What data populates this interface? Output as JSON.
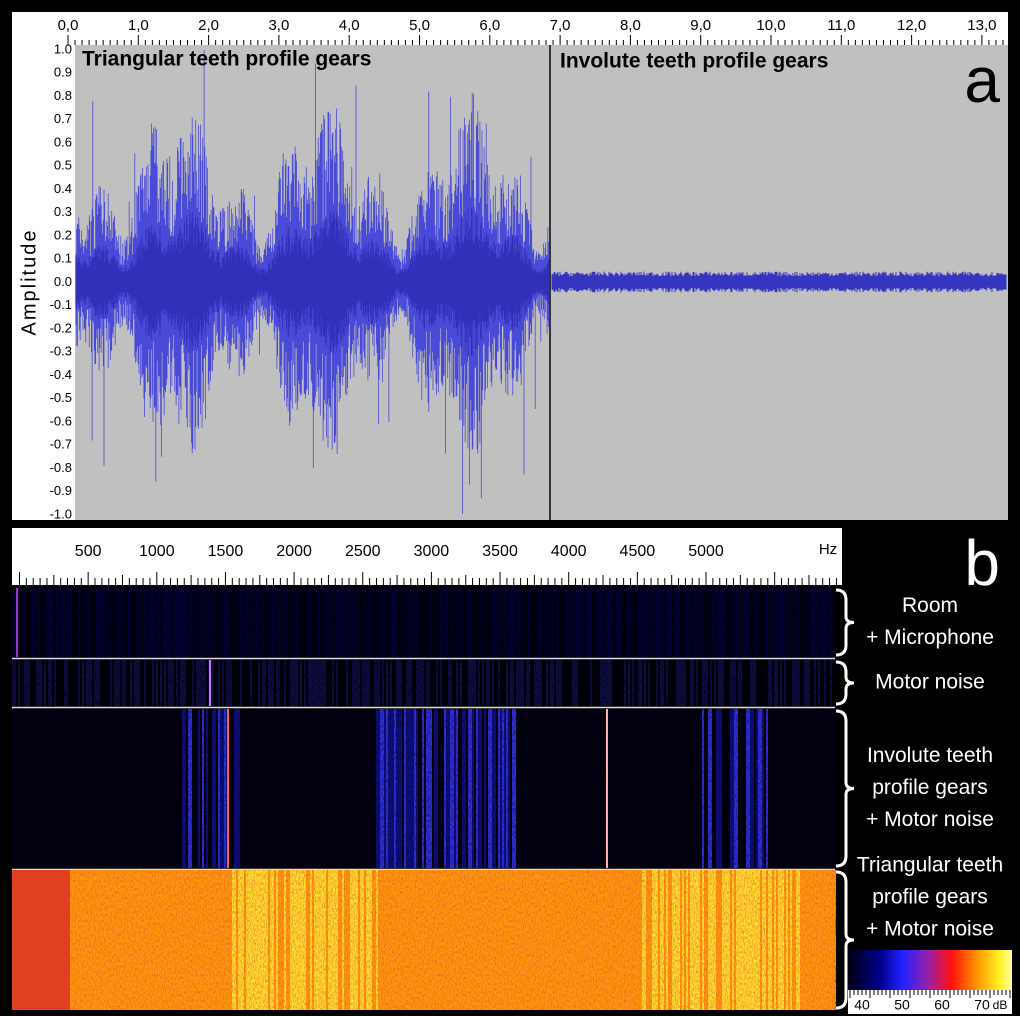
{
  "panel_a": {
    "label": "a",
    "y_axis_title": "Amplitude",
    "x_ticks": [
      "0,0",
      "1,0",
      "2,0",
      "3,0",
      "4,0",
      "5,0",
      "6,0",
      "7,0",
      "8,0",
      "9,0",
      "10,0",
      "11,0",
      "12,0",
      "13,0"
    ],
    "y_ticks": [
      "1.0",
      "0.9",
      "0.8",
      "0.7",
      "0.6",
      "0.5",
      "0.4",
      "0.3",
      "0.2",
      "0.1",
      "0.0",
      "-0.1",
      "-0.2",
      "-0.3",
      "-0.4",
      "-0.5",
      "-0.6",
      "-0.7",
      "-0.8",
      "-0.9",
      "-1.0"
    ],
    "sections": [
      "Triangular  teeth profile gears",
      "Involute teeth profile gears"
    ]
  },
  "panel_b": {
    "label": "b",
    "x_ticks": [
      "500",
      "1000",
      "1500",
      "2000",
      "2500",
      "3000",
      "3500",
      "4000",
      "4500",
      "5000"
    ],
    "x_unit": "Hz",
    "rows": [
      [
        "Room",
        "+ Microphone"
      ],
      [
        "Motor noise"
      ],
      [
        "Involute teeth",
        "profile gears",
        "+ Motor noise"
      ],
      [
        "Triangular teeth",
        "profile gears",
        "+ Motor noise"
      ]
    ],
    "colorbar": {
      "ticks": [
        "40",
        "50",
        "60",
        "70"
      ],
      "unit": "dB"
    }
  }
}
